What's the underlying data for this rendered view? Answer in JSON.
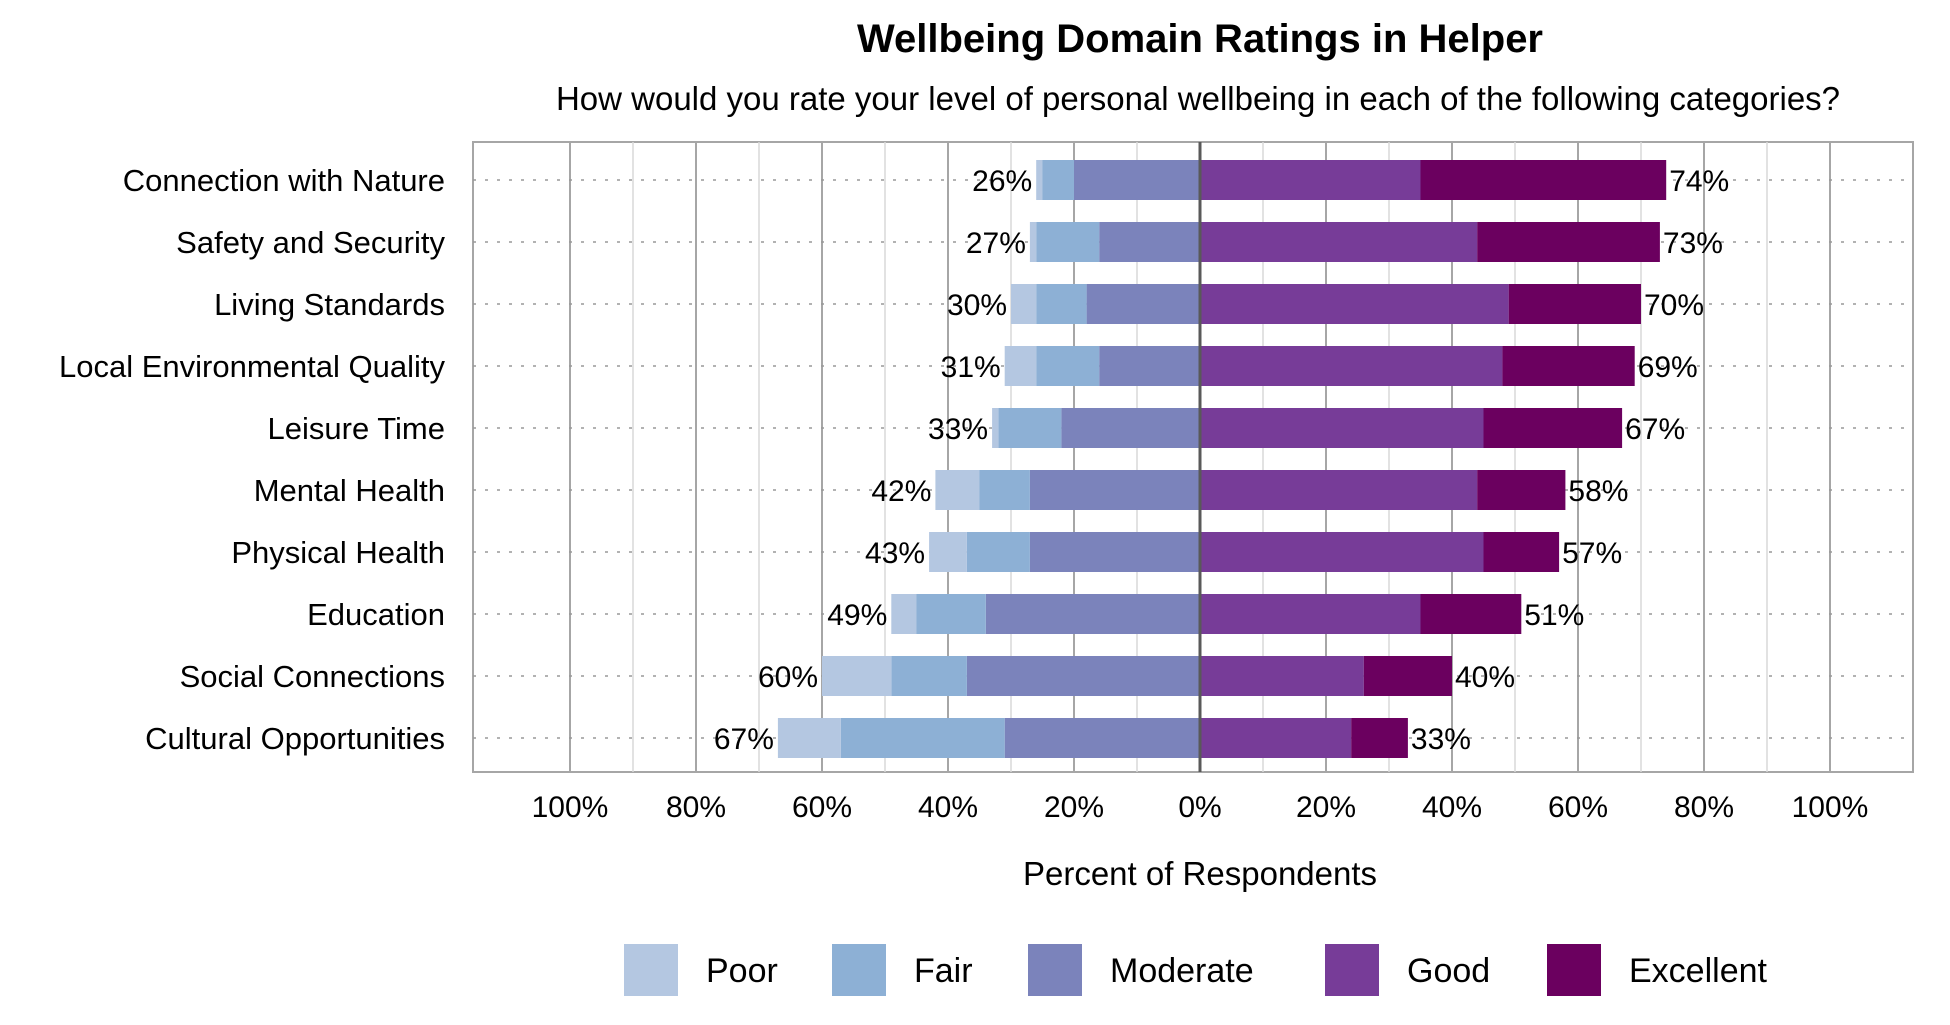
{
  "chart_data": {
    "type": "bar",
    "orientation": "horizontal",
    "stacking": "diverging",
    "title": "Wellbeing Domain Ratings in Helper",
    "subtitle": "How would you rate your level of personal wellbeing in each of the following categories?",
    "xlabel": "Percent of Respondents",
    "ylabel": "",
    "xlim": [
      -100,
      100
    ],
    "x_ticks": [
      -100,
      -80,
      -60,
      -40,
      -20,
      0,
      20,
      40,
      60,
      80,
      100
    ],
    "x_tick_labels": [
      "100%",
      "80%",
      "60%",
      "40%",
      "20%",
      "0%",
      "20%",
      "40%",
      "60%",
      "80%",
      "100%"
    ],
    "grid": true,
    "legend_position": "bottom",
    "categories": [
      "Connection with Nature",
      "Safety and Security",
      "Living Standards",
      "Local Environmental Quality",
      "Leisure Time",
      "Mental Health",
      "Physical Health",
      "Education",
      "Social Connections",
      "Cultural Opportunities"
    ],
    "series": [
      {
        "name": "Poor",
        "side": "negative",
        "color": "#b4c7e1",
        "values": [
          1,
          1,
          4,
          5,
          1,
          7,
          6,
          4,
          11,
          10
        ]
      },
      {
        "name": "Fair",
        "side": "negative",
        "color": "#8db0d5",
        "values": [
          5,
          10,
          8,
          10,
          10,
          8,
          10,
          11,
          12,
          26
        ]
      },
      {
        "name": "Moderate",
        "side": "negative",
        "color": "#7b83bb",
        "values": [
          20,
          16,
          18,
          16,
          22,
          27,
          27,
          34,
          37,
          31
        ]
      },
      {
        "name": "Good",
        "side": "positive",
        "color": "#773c98",
        "values": [
          35,
          44,
          49,
          48,
          45,
          44,
          45,
          35,
          26,
          24
        ]
      },
      {
        "name": "Excellent",
        "side": "positive",
        "color": "#6b005f",
        "values": [
          39,
          29,
          21,
          21,
          22,
          14,
          12,
          16,
          14,
          9
        ]
      }
    ],
    "negative_totals": [
      "26%",
      "27%",
      "30%",
      "31%",
      "33%",
      "42%",
      "43%",
      "49%",
      "60%",
      "67%"
    ],
    "positive_totals": [
      "74%",
      "73%",
      "70%",
      "69%",
      "67%",
      "58%",
      "57%",
      "51%",
      "40%",
      "33%"
    ],
    "colors": {
      "grid_major": "#a6a6a6",
      "grid_minor": "#d9d9d9",
      "dotted": "#999999",
      "frame": "#a6a6a6",
      "zero_line": "#595959"
    }
  }
}
